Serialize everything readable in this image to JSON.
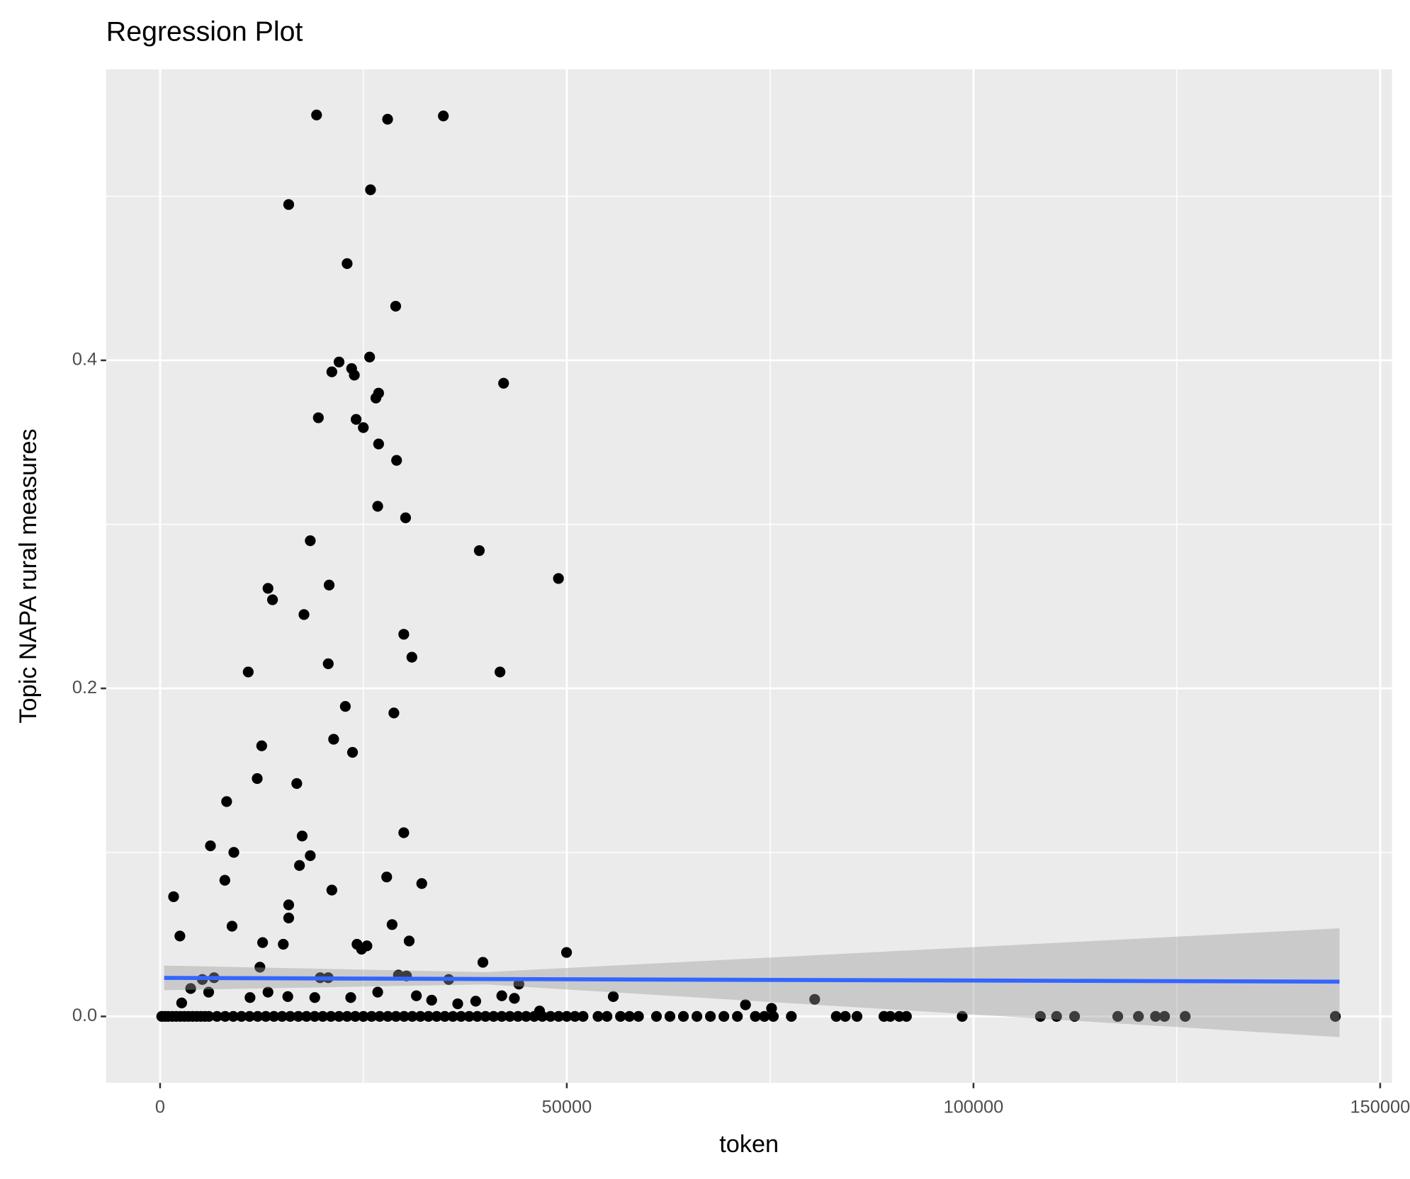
{
  "chart_data": {
    "type": "scatter",
    "title": "Regression Plot",
    "x_label": "token",
    "y_label": "Topic NAPA rural measures",
    "xlim": [
      -6633,
      151450
    ],
    "ylim": [
      -0.0405,
      0.5775
    ],
    "xticks": [
      0,
      50000,
      100000,
      150000
    ],
    "yticks": [
      {
        "value": 0,
        "label": "0.0"
      },
      0.2,
      0.4
    ],
    "minor_xticks": [
      25000,
      75000,
      125000
    ],
    "minor_yticks": [
      0.1,
      0.3,
      0.5
    ],
    "grid": true,
    "point_color": "#000000",
    "line_color": "#3366ff",
    "band_color": "#999999",
    "series": [
      {
        "x": [
          19237,
          27969,
          34823,
          25869,
          15809,
          22994,
          28964,
          25758,
          22000,
          21115,
          23547,
          23879,
          42230,
          26864,
          26532,
          19457,
          24100,
          24984,
          26864,
          29075,
          26753,
          30180,
          18462,
          39245,
          48974,
          13266,
          20784,
          13819,
          17688,
          29959,
          30954,
          20673,
          10834,
          41788,
          22773,
          28743,
          21336,
          12492,
          23658,
          11939,
          16804,
          8181,
          29959,
          17467,
          6191,
          9065,
          18462,
          17135,
          7960,
          27858,
          32170,
          21115,
          1658,
          15809,
          15809,
          8844,
          28522,
          2432,
          30622,
          12603,
          15145,
          24210,
          25427,
          24763,
          49969,
          39688,
          12271,
          5196,
          6633,
          35487,
          29296,
          30291,
          19678,
          20673,
          44109,
          3759,
          5970,
          26753,
          11055,
          31507,
          38803,
          36592,
          43557,
          55717,
          80480,
          71968,
          2653,
          19015,
          23437,
          33386,
          13266,
          15698,
          42009,
          46652,
          75174,
          200,
          600,
          1000,
          1500,
          2000,
          2500,
          3000,
          3500,
          4000,
          4500,
          5000,
          5500,
          6000,
          7000,
          8000,
          9000,
          10000,
          11000,
          12000,
          13000,
          14000,
          15000,
          16000,
          17000,
          18000,
          19000,
          20000,
          21000,
          22000,
          23000,
          24000,
          25000,
          26000,
          27000,
          28000,
          29000,
          30000,
          31000,
          32000,
          33000,
          34000,
          35000,
          36000,
          37000,
          38000,
          39000,
          40000,
          41000,
          42000,
          43000,
          44000,
          45000,
          46000,
          47000,
          48000,
          49000,
          50000,
          51000,
          52000,
          53838,
          54943,
          56602,
          57707,
          58813,
          61024,
          62682,
          64340,
          65998,
          67657,
          69315,
          70973,
          73184,
          74290,
          75395,
          77606,
          83134,
          84239,
          85677,
          88993,
          89767,
          90873,
          91757,
          98611,
          108229,
          110219,
          112429,
          117736,
          120278,
          122379,
          123484,
          126027,
          144489
        ],
        "values": [
          0.5496,
          0.547,
          0.549,
          0.504,
          0.495,
          0.459,
          0.433,
          0.402,
          0.399,
          0.393,
          0.395,
          0.391,
          0.386,
          0.38,
          0.377,
          0.365,
          0.364,
          0.359,
          0.349,
          0.339,
          0.311,
          0.304,
          0.29,
          0.284,
          0.267,
          0.261,
          0.263,
          0.254,
          0.245,
          0.233,
          0.219,
          0.215,
          0.21,
          0.21,
          0.189,
          0.185,
          0.169,
          0.165,
          0.161,
          0.145,
          0.142,
          0.131,
          0.112,
          0.11,
          0.104,
          0.1,
          0.098,
          0.092,
          0.083,
          0.085,
          0.081,
          0.077,
          0.073,
          0.068,
          0.06,
          0.055,
          0.056,
          0.049,
          0.046,
          0.045,
          0.044,
          0.044,
          0.043,
          0.041,
          0.039,
          0.033,
          0.03,
          0.0225,
          0.0236,
          0.0225,
          0.0252,
          0.0247,
          0.0236,
          0.0236,
          0.0197,
          0.017,
          0.0148,
          0.0148,
          0.0115,
          0.0126,
          0.0093,
          0.0077,
          0.011,
          0.0121,
          0.0104,
          0.0071,
          0.0082,
          0.0115,
          0.0115,
          0.0099,
          0.0148,
          0.0121,
          0.0126,
          0.0033,
          0.0049,
          0,
          0,
          0,
          0,
          0,
          0,
          0,
          0,
          0,
          0,
          0,
          0,
          0,
          0,
          0,
          0,
          0,
          0,
          0,
          0,
          0,
          0,
          0,
          0,
          0,
          0,
          0,
          0,
          0,
          0,
          0,
          0,
          0,
          0,
          0,
          0,
          0,
          0,
          0,
          0,
          0,
          0,
          0,
          0,
          0,
          0,
          0,
          0,
          0,
          0,
          0,
          0,
          0,
          0,
          0,
          0,
          0,
          0,
          0,
          0,
          0,
          0,
          0,
          0,
          0,
          0,
          0,
          0,
          0,
          0,
          0,
          0,
          0,
          0,
          0,
          0,
          0,
          0,
          0,
          0,
          0,
          0,
          0,
          0,
          0,
          0,
          0,
          0,
          0,
          0,
          0,
          0
        ]
      }
    ],
    "fit": {
      "x": [
        500,
        40000,
        145000
      ],
      "values": [
        0.0235,
        0.0228,
        0.0212
      ],
      "lower": [
        0.016,
        0.0195,
        -0.0126
      ],
      "upper": [
        0.031,
        0.027,
        0.0537
      ]
    }
  }
}
